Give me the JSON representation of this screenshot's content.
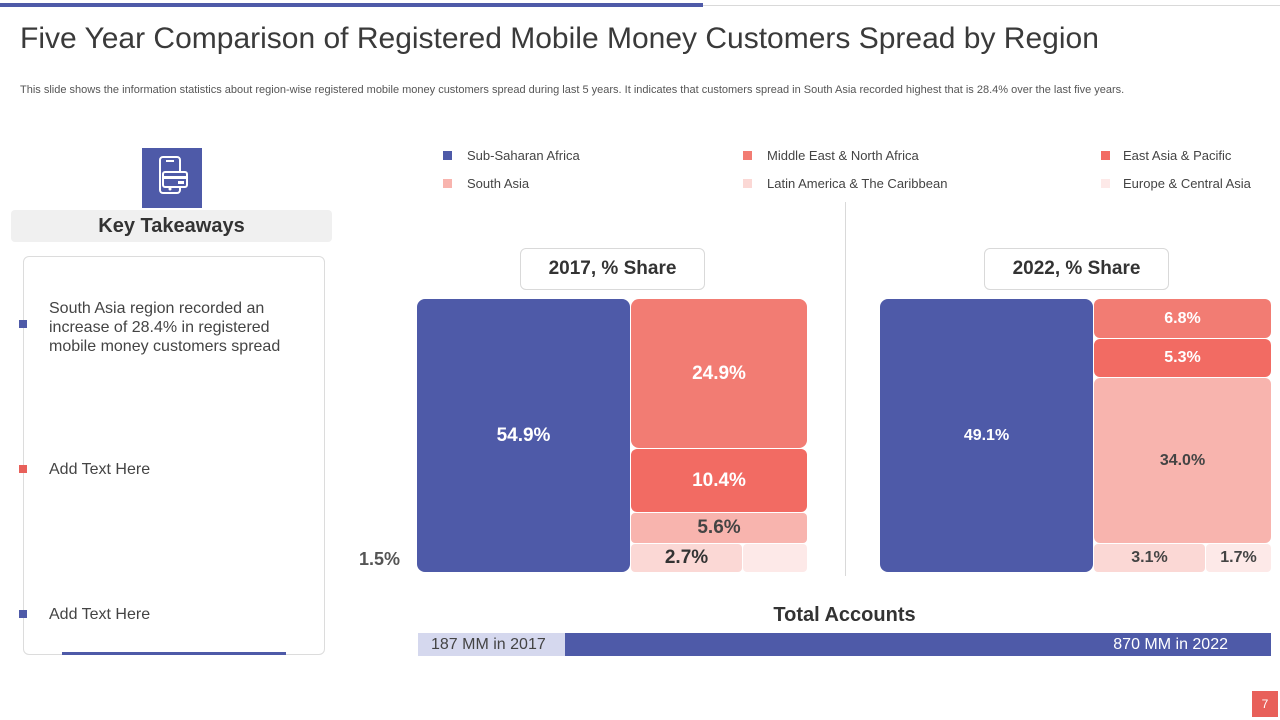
{
  "slide": {
    "title": "Five Year Comparison of Registered Mobile Money Customers Spread by Region",
    "subtitle": "This slide shows the information statistics about region-wise registered mobile money customers spread during last 5 years. It indicates that customers spread in South Asia recorded highest that is 28.4% over the last five years.",
    "page_number": "7"
  },
  "key_takeaways": {
    "heading": "Key Takeaways",
    "icon": "mobile-payment-icon",
    "items": [
      {
        "text": "South Asia region recorded an increase of 28.4% in registered mobile money customers spread",
        "color": "#4e5aa8"
      },
      {
        "text": "Add Text Here",
        "color": "#e8605a"
      },
      {
        "text": "Add Text Here",
        "color": "#4e5aa8"
      }
    ]
  },
  "colors": {
    "sub_saharan": "#4e5aa8",
    "mena": "#f27c73",
    "east_asia": "#f26b63",
    "south_asia": "#f8b4ae",
    "latam": "#fbd8d5",
    "europe": "#fde9e8"
  },
  "chart_data": [
    {
      "type": "treemap",
      "title": "2017, % Share",
      "legend": [
        "Sub-Saharan Africa",
        "Middle East & North Africa",
        "East Asia & Pacific",
        "South Asia",
        "Latin America & The Caribbean",
        "Europe & Central Asia"
      ],
      "series": [
        {
          "name": "Sub-Saharan Africa",
          "value": 54.9,
          "label": "54.9%"
        },
        {
          "name": "Middle East & North Africa",
          "value": 24.9,
          "label": "24.9%"
        },
        {
          "name": "East Asia & Pacific",
          "value": 10.4,
          "label": "10.4%"
        },
        {
          "name": "South Asia",
          "value": 5.6,
          "label": "5.6%"
        },
        {
          "name": "Latin America & The Caribbean",
          "value": 2.7,
          "label": "2.7%"
        },
        {
          "name": "Europe & Central Asia",
          "value": 1.5,
          "label": "1.5%"
        }
      ]
    },
    {
      "type": "treemap",
      "title": "2022, % Share",
      "series": [
        {
          "name": "Sub-Saharan Africa",
          "value": 49.1,
          "label": "49.1%"
        },
        {
          "name": "Middle East & North Africa",
          "value": 6.8,
          "label": "6.8%"
        },
        {
          "name": "East Asia & Pacific",
          "value": 5.3,
          "label": "5.3%"
        },
        {
          "name": "South Asia",
          "value": 34.0,
          "label": "34.0%"
        },
        {
          "name": "Latin America & The Caribbean",
          "value": 3.1,
          "label": "3.1%"
        },
        {
          "name": "Europe & Central Asia",
          "value": 1.7,
          "label": "1.7%"
        }
      ]
    },
    {
      "type": "bar",
      "title": "Total Accounts",
      "categories": [
        "2017",
        "2022"
      ],
      "values": [
        187,
        870
      ],
      "unit": "MM",
      "labels": [
        "187 MM in 2017",
        "870 MM in 2022"
      ]
    }
  ]
}
